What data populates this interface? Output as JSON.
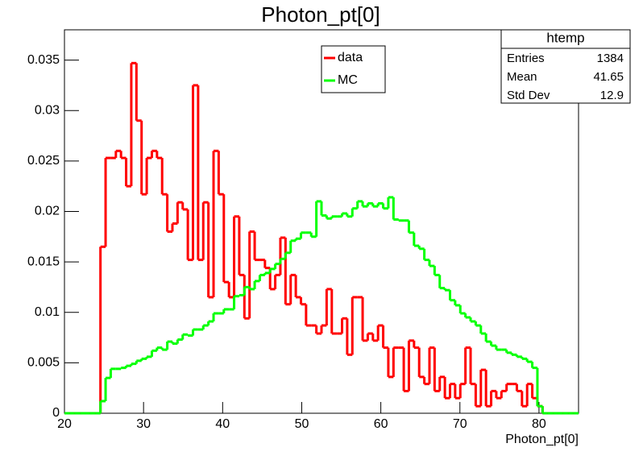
{
  "chart_data": {
    "type": "histogram",
    "title": "Photon_pt[0]",
    "x_label": "Photon_pt[0]",
    "bins": [
      20,
      20.65,
      21.3,
      21.95,
      22.6,
      23.25,
      23.9,
      24.55,
      25.2,
      25.85,
      26.5,
      27.15,
      27.8,
      28.45,
      29.1,
      29.75,
      30.4,
      31.05,
      31.7,
      32.35,
      33,
      33.65,
      34.3,
      34.95,
      35.6,
      36.25,
      36.9,
      37.55,
      38.2,
      38.85,
      39.5,
      40.15,
      40.8,
      41.45,
      42.1,
      42.75,
      43.4,
      44.05,
      44.7,
      45.35,
      46,
      46.65,
      47.3,
      47.95,
      48.6,
      49.25,
      49.9,
      50.55,
      51.2,
      51.85,
      52.5,
      53.15,
      53.8,
      54.45,
      55.1,
      55.75,
      56.4,
      57.05,
      57.7,
      58.35,
      59,
      59.65,
      60.3,
      60.95,
      61.6,
      62.25,
      62.9,
      63.55,
      64.2,
      64.85,
      65.5,
      66.15,
      66.8,
      67.45,
      68.1,
      68.75,
      69.4,
      70.05,
      70.7,
      71.35,
      72,
      72.65,
      73.3,
      73.95,
      74.6,
      75.25,
      75.9,
      76.55,
      77.2,
      77.85,
      78.5,
      79.15,
      79.8,
      80.45,
      81.1,
      81.75,
      82.4,
      83.05,
      83.7,
      84.35,
      85
    ],
    "series": [
      {
        "name": "data",
        "color": "#ff0000",
        "values": [
          0,
          0,
          0,
          0,
          0,
          0,
          0,
          0.0165,
          0.0253,
          0.0253,
          0.026,
          0.0253,
          0.0225,
          0.0347,
          0.029,
          0.0217,
          0.0253,
          0.026,
          0.0253,
          0.0217,
          0.018,
          0.0188,
          0.0209,
          0.0202,
          0.0152,
          0.0325,
          0.0152,
          0.0209,
          0.0115,
          0.026,
          0.0217,
          0.013,
          0.0115,
          0.0195,
          0.0137,
          0.0094,
          0.018,
          0.0152,
          0.0152,
          0.0144,
          0.0123,
          0.0137,
          0.0174,
          0.0108,
          0.0137,
          0.0115,
          0.0108,
          0.0087,
          0.0087,
          0.0079,
          0.0087,
          0.0123,
          0.0079,
          0.0079,
          0.0094,
          0.0058,
          0.0115,
          0.0115,
          0.0072,
          0.0079,
          0.0072,
          0.0087,
          0.0065,
          0.0036,
          0.0065,
          0.0065,
          0.0022,
          0.0072,
          0.0065,
          0.0036,
          0.0029,
          0.0065,
          0.0022,
          0.0036,
          0.0015,
          0.0029,
          0.0015,
          0.0029,
          0.0065,
          0.0029,
          0.0007,
          0.0043,
          0.0007,
          0.0022,
          0.0015,
          0.0022,
          0.0029,
          0.0029,
          0.0022,
          0.0007,
          0.0029,
          0.0015,
          0.0007,
          0,
          0,
          0,
          0,
          0,
          0,
          0
        ]
      },
      {
        "name": "MC",
        "color": "#00ff00",
        "values": [
          0,
          0,
          0,
          0,
          0,
          0,
          0,
          0.0012,
          0.0035,
          0.0044,
          0.0044,
          0.0045,
          0.0047,
          0.0049,
          0.0052,
          0.0054,
          0.0056,
          0.0062,
          0.0065,
          0.0063,
          0.0071,
          0.0069,
          0.0073,
          0.0078,
          0.0077,
          0.0083,
          0.0083,
          0.0087,
          0.0091,
          0.0099,
          0.0099,
          0.0103,
          0.0103,
          0.0116,
          0.0117,
          0.0125,
          0.0123,
          0.0131,
          0.0137,
          0.0139,
          0.0143,
          0.0148,
          0.0153,
          0.0159,
          0.0171,
          0.0173,
          0.0179,
          0.0179,
          0.0175,
          0.021,
          0.0196,
          0.0193,
          0.0195,
          0.0195,
          0.0198,
          0.0195,
          0.0203,
          0.021,
          0.0205,
          0.0208,
          0.0205,
          0.0208,
          0.0203,
          0.0214,
          0.0192,
          0.0191,
          0.0191,
          0.0179,
          0.0166,
          0.0163,
          0.0152,
          0.0146,
          0.0137,
          0.0124,
          0.0122,
          0.0112,
          0.0107,
          0.0099,
          0.0095,
          0.0091,
          0.0087,
          0.0079,
          0.0071,
          0.0067,
          0.0063,
          0.0063,
          0.006,
          0.0058,
          0.0056,
          0.0054,
          0.0051,
          0.0045,
          0.0007,
          0,
          0,
          0,
          0,
          0,
          0,
          0
        ]
      }
    ],
    "xlim": [
      20,
      85
    ],
    "xticks": [
      20,
      30,
      40,
      50,
      60,
      70,
      80
    ],
    "ylim": [
      0,
      0.038
    ],
    "yticks": [
      0,
      0.005,
      0.01,
      0.015,
      0.02,
      0.025,
      0.03,
      0.035
    ],
    "stats": {
      "title": "htemp",
      "rows": [
        {
          "label": "Entries",
          "value": 1384
        },
        {
          "label": "Mean",
          "value": 41.65
        },
        {
          "label": "Std Dev",
          "value": 12.9
        }
      ]
    }
  }
}
